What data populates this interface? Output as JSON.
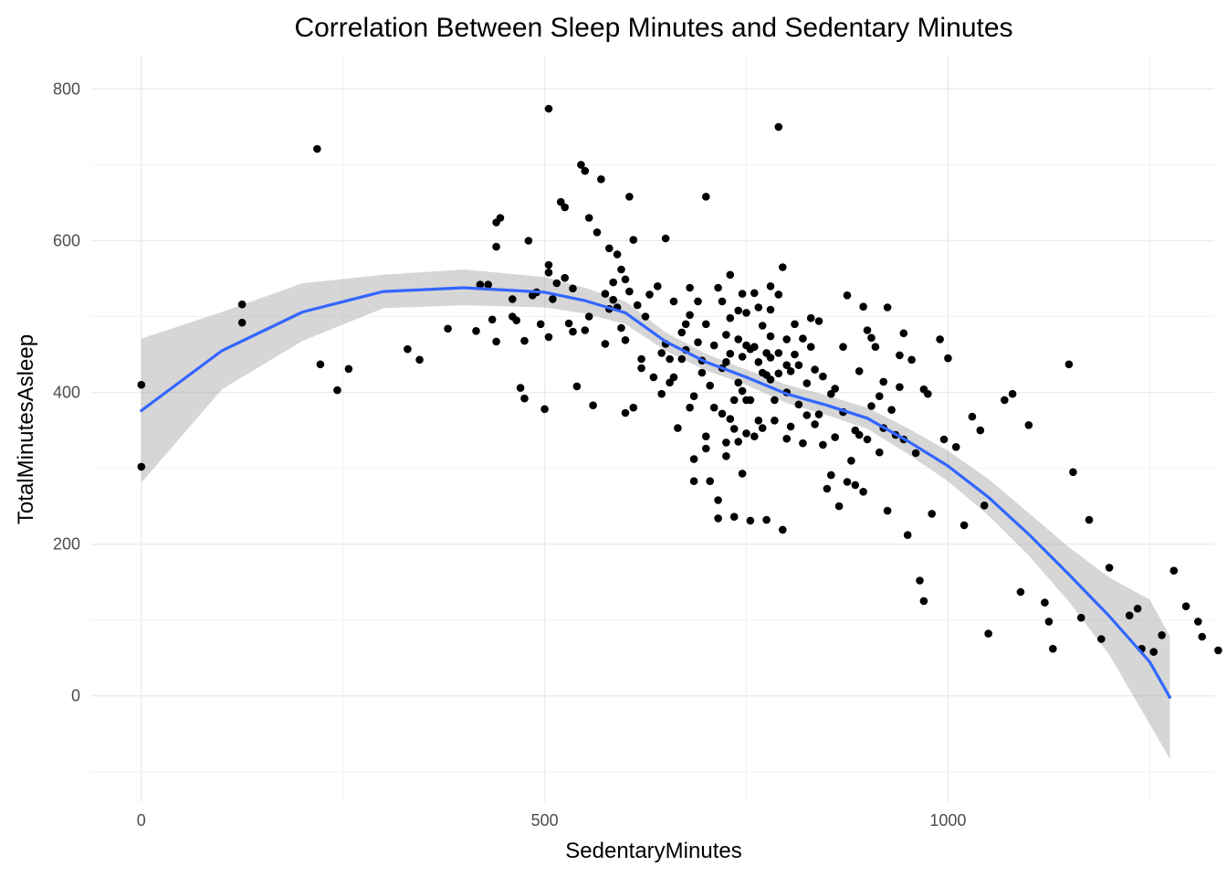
{
  "chart_data": {
    "type": "scatter",
    "title": "Correlation Between Sleep Minutes and Sedentary Minutes",
    "xlabel": "SedentaryMinutes",
    "ylabel": "TotalMinutesAsleep",
    "xlim": [
      -62,
      1330
    ],
    "ylim": [
      -140,
      845
    ],
    "x_ticks": [
      0,
      500,
      1000
    ],
    "x_tick_labels": [
      "0",
      "500",
      "1000"
    ],
    "x_minor_ticks": [
      250,
      750,
      1250
    ],
    "y_ticks": [
      0,
      200,
      400,
      600,
      800
    ],
    "y_tick_labels": [
      "0",
      "200",
      "400",
      "600",
      "800"
    ],
    "y_minor_ticks": [
      -100,
      100,
      300,
      500,
      700
    ],
    "grid": true,
    "colors": {
      "points": "#000000",
      "smooth_line": "#3366ff",
      "confidence_band": "#999999",
      "grid": "#ebebeb"
    },
    "points": [
      [
        0,
        410
      ],
      [
        0,
        302
      ],
      [
        125,
        516
      ],
      [
        125,
        492
      ],
      [
        218,
        721
      ],
      [
        222,
        437
      ],
      [
        243,
        403
      ],
      [
        257,
        431
      ],
      [
        330,
        457
      ],
      [
        345,
        443
      ],
      [
        380,
        484
      ],
      [
        415,
        481
      ],
      [
        420,
        542
      ],
      [
        430,
        542
      ],
      [
        435,
        496
      ],
      [
        440,
        467
      ],
      [
        440,
        592
      ],
      [
        440,
        624
      ],
      [
        445,
        630
      ],
      [
        460,
        500
      ],
      [
        460,
        523
      ],
      [
        465,
        495
      ],
      [
        470,
        406
      ],
      [
        475,
        468
      ],
      [
        475,
        392
      ],
      [
        480,
        600
      ],
      [
        485,
        528
      ],
      [
        490,
        532
      ],
      [
        495,
        490
      ],
      [
        500,
        378
      ],
      [
        505,
        774
      ],
      [
        505,
        568
      ],
      [
        505,
        558
      ],
      [
        505,
        473
      ],
      [
        510,
        523
      ],
      [
        515,
        544
      ],
      [
        520,
        651
      ],
      [
        525,
        551
      ],
      [
        525,
        644
      ],
      [
        530,
        491
      ],
      [
        535,
        537
      ],
      [
        535,
        480
      ],
      [
        540,
        408
      ],
      [
        545,
        700
      ],
      [
        550,
        482
      ],
      [
        550,
        692
      ],
      [
        555,
        630
      ],
      [
        555,
        500
      ],
      [
        560,
        383
      ],
      [
        565,
        611
      ],
      [
        570,
        681
      ],
      [
        575,
        464
      ],
      [
        575,
        530
      ],
      [
        580,
        590
      ],
      [
        580,
        510
      ],
      [
        585,
        545
      ],
      [
        585,
        522
      ],
      [
        590,
        582
      ],
      [
        590,
        512
      ],
      [
        595,
        562
      ],
      [
        595,
        485
      ],
      [
        600,
        549
      ],
      [
        600,
        469
      ],
      [
        600,
        373
      ],
      [
        605,
        658
      ],
      [
        605,
        533
      ],
      [
        610,
        601
      ],
      [
        610,
        380
      ],
      [
        615,
        515
      ],
      [
        620,
        444
      ],
      [
        620,
        432
      ],
      [
        625,
        500
      ],
      [
        630,
        529
      ],
      [
        635,
        420
      ],
      [
        640,
        540
      ],
      [
        645,
        398
      ],
      [
        645,
        452
      ],
      [
        650,
        464
      ],
      [
        650,
        603
      ],
      [
        655,
        444
      ],
      [
        655,
        413
      ],
      [
        660,
        520
      ],
      [
        660,
        420
      ],
      [
        665,
        353
      ],
      [
        670,
        479
      ],
      [
        670,
        444
      ],
      [
        675,
        490
      ],
      [
        675,
        456
      ],
      [
        680,
        538
      ],
      [
        680,
        502
      ],
      [
        680,
        380
      ],
      [
        685,
        395
      ],
      [
        685,
        312
      ],
      [
        685,
        283
      ],
      [
        690,
        520
      ],
      [
        690,
        466
      ],
      [
        695,
        442
      ],
      [
        695,
        426
      ],
      [
        700,
        658
      ],
      [
        700,
        490
      ],
      [
        700,
        342
      ],
      [
        700,
        326
      ],
      [
        705,
        409
      ],
      [
        705,
        283
      ],
      [
        710,
        462
      ],
      [
        710,
        380
      ],
      [
        715,
        538
      ],
      [
        715,
        258
      ],
      [
        715,
        234
      ],
      [
        720,
        520
      ],
      [
        720,
        432
      ],
      [
        720,
        372
      ],
      [
        725,
        476
      ],
      [
        725,
        440
      ],
      [
        725,
        334
      ],
      [
        725,
        316
      ],
      [
        730,
        555
      ],
      [
        730,
        498
      ],
      [
        730,
        451
      ],
      [
        730,
        365
      ],
      [
        735,
        390
      ],
      [
        735,
        352
      ],
      [
        735,
        236
      ],
      [
        740,
        508
      ],
      [
        740,
        470
      ],
      [
        740,
        413
      ],
      [
        740,
        335
      ],
      [
        745,
        530
      ],
      [
        745,
        447
      ],
      [
        745,
        402
      ],
      [
        745,
        293
      ],
      [
        750,
        505
      ],
      [
        750,
        462
      ],
      [
        750,
        390
      ],
      [
        750,
        346
      ],
      [
        755,
        457
      ],
      [
        755,
        390
      ],
      [
        755,
        231
      ],
      [
        760,
        531
      ],
      [
        760,
        460
      ],
      [
        760,
        342
      ],
      [
        765,
        512
      ],
      [
        765,
        440
      ],
      [
        765,
        363
      ],
      [
        770,
        488
      ],
      [
        770,
        426
      ],
      [
        770,
        353
      ],
      [
        775,
        452
      ],
      [
        775,
        423
      ],
      [
        775,
        232
      ],
      [
        780,
        540
      ],
      [
        780,
        509
      ],
      [
        780,
        474
      ],
      [
        780,
        446
      ],
      [
        780,
        417
      ],
      [
        785,
        390
      ],
      [
        785,
        363
      ],
      [
        790,
        750
      ],
      [
        790,
        529
      ],
      [
        790,
        452
      ],
      [
        790,
        425
      ],
      [
        795,
        219
      ],
      [
        795,
        565
      ],
      [
        800,
        470
      ],
      [
        800,
        436
      ],
      [
        800,
        400
      ],
      [
        800,
        339
      ],
      [
        805,
        428
      ],
      [
        805,
        355
      ],
      [
        810,
        490
      ],
      [
        810,
        450
      ],
      [
        815,
        436
      ],
      [
        815,
        384
      ],
      [
        820,
        471
      ],
      [
        820,
        333
      ],
      [
        825,
        412
      ],
      [
        825,
        370
      ],
      [
        830,
        498
      ],
      [
        830,
        460
      ],
      [
        835,
        430
      ],
      [
        835,
        358
      ],
      [
        840,
        494
      ],
      [
        840,
        371
      ],
      [
        845,
        421
      ],
      [
        845,
        331
      ],
      [
        850,
        273
      ],
      [
        855,
        398
      ],
      [
        855,
        291
      ],
      [
        860,
        405
      ],
      [
        860,
        341
      ],
      [
        865,
        250
      ],
      [
        870,
        460
      ],
      [
        870,
        374
      ],
      [
        875,
        528
      ],
      [
        875,
        282
      ],
      [
        880,
        310
      ],
      [
        885,
        350
      ],
      [
        885,
        278
      ],
      [
        890,
        428
      ],
      [
        890,
        344
      ],
      [
        895,
        513
      ],
      [
        895,
        269
      ],
      [
        900,
        482
      ],
      [
        900,
        338
      ],
      [
        905,
        472
      ],
      [
        905,
        382
      ],
      [
        910,
        460
      ],
      [
        915,
        395
      ],
      [
        915,
        321
      ],
      [
        920,
        414
      ],
      [
        920,
        353
      ],
      [
        925,
        512
      ],
      [
        925,
        244
      ],
      [
        930,
        377
      ],
      [
        935,
        344
      ],
      [
        940,
        449
      ],
      [
        940,
        407
      ],
      [
        945,
        478
      ],
      [
        945,
        338
      ],
      [
        950,
        212
      ],
      [
        955,
        443
      ],
      [
        960,
        320
      ],
      [
        965,
        152
      ],
      [
        970,
        404
      ],
      [
        970,
        125
      ],
      [
        975,
        398
      ],
      [
        980,
        240
      ],
      [
        990,
        470
      ],
      [
        995,
        338
      ],
      [
        1000,
        445
      ],
      [
        1010,
        328
      ],
      [
        1020,
        225
      ],
      [
        1030,
        368
      ],
      [
        1040,
        350
      ],
      [
        1045,
        251
      ],
      [
        1050,
        82
      ],
      [
        1070,
        390
      ],
      [
        1080,
        398
      ],
      [
        1090,
        137
      ],
      [
        1100,
        357
      ],
      [
        1120,
        123
      ],
      [
        1125,
        98
      ],
      [
        1130,
        62
      ],
      [
        1150,
        437
      ],
      [
        1155,
        295
      ],
      [
        1165,
        103
      ],
      [
        1175,
        232
      ],
      [
        1190,
        75
      ],
      [
        1200,
        169
      ],
      [
        1225,
        106
      ],
      [
        1235,
        115
      ],
      [
        1240,
        62
      ],
      [
        1255,
        58
      ],
      [
        1265,
        80
      ],
      [
        1280,
        165
      ],
      [
        1295,
        118
      ],
      [
        1310,
        98
      ],
      [
        1315,
        78
      ],
      [
        1335,
        60
      ]
    ],
    "smooth": [
      [
        0,
        376
      ],
      [
        100,
        455
      ],
      [
        200,
        506
      ],
      [
        300,
        533
      ],
      [
        400,
        538
      ],
      [
        500,
        532
      ],
      [
        550,
        521
      ],
      [
        600,
        505
      ],
      [
        650,
        467
      ],
      [
        700,
        440
      ],
      [
        750,
        420
      ],
      [
        800,
        398
      ],
      [
        850,
        383
      ],
      [
        900,
        366
      ],
      [
        950,
        336
      ],
      [
        1000,
        303
      ],
      [
        1050,
        262
      ],
      [
        1100,
        213
      ],
      [
        1150,
        160
      ],
      [
        1200,
        105
      ],
      [
        1250,
        45
      ],
      [
        1275,
        -2
      ]
    ],
    "band": [
      [
        0,
        281,
        471
      ],
      [
        100,
        404,
        506
      ],
      [
        200,
        468,
        544
      ],
      [
        300,
        511,
        555
      ],
      [
        400,
        515,
        562
      ],
      [
        500,
        512,
        552
      ],
      [
        550,
        504,
        538
      ],
      [
        600,
        490,
        520
      ],
      [
        650,
        455,
        479
      ],
      [
        700,
        429,
        451
      ],
      [
        750,
        410,
        430
      ],
      [
        800,
        386,
        410
      ],
      [
        850,
        370,
        396
      ],
      [
        900,
        352,
        380
      ],
      [
        950,
        319,
        353
      ],
      [
        1000,
        283,
        323
      ],
      [
        1050,
        238,
        286
      ],
      [
        1100,
        185,
        241
      ],
      [
        1150,
        124,
        196
      ],
      [
        1200,
        54,
        156
      ],
      [
        1250,
        -37,
        127
      ],
      [
        1275,
        -83,
        79
      ]
    ]
  }
}
